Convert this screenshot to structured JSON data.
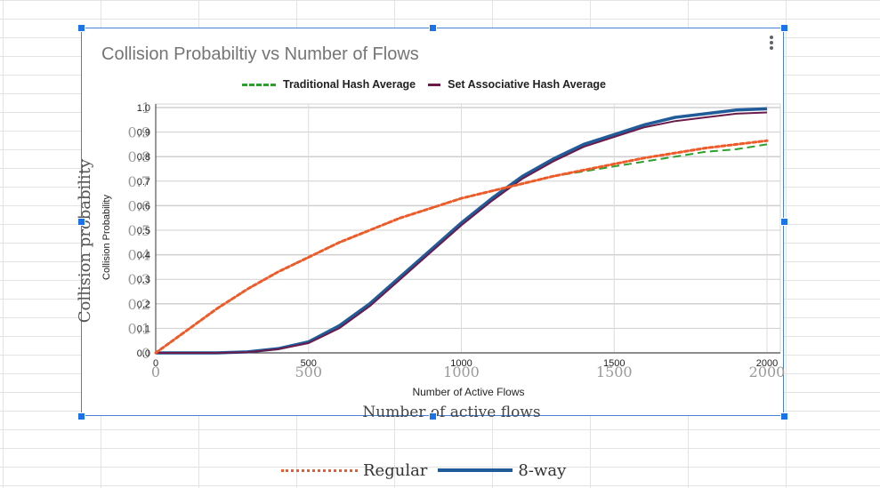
{
  "chart": {
    "title": "Collision Probabiltiy vs Number of Flows"
  },
  "chart_data": {
    "type": "line",
    "xlabel_inner": "Number of Active Flows",
    "ylabel_inner": "Collision Probability",
    "xlabel_outer": "Number of active flows",
    "ylabel_outer": "Collision probability",
    "xlim": [
      0,
      2000
    ],
    "ylim": [
      0,
      1
    ],
    "x_ticks": [
      "0",
      "500",
      "1000",
      "1500",
      "2000"
    ],
    "y_ticks": [
      "0",
      "0.1",
      "0.2",
      "0.3",
      "0.4",
      "0.5",
      "0.6",
      "0.7",
      "0.8",
      "0.9",
      "1"
    ],
    "y_ticks_inner": [
      "0.0",
      "0.1",
      "0.2",
      "0.3",
      "0.4",
      "0.5",
      "0.6",
      "0.7",
      "0.8",
      "0.9",
      "1.0"
    ],
    "grid": true,
    "legend_top": [
      "Traditional Hash Average",
      "Set Associative Hash Average"
    ],
    "legend_bottom": [
      "Regular",
      "8-way"
    ],
    "x": [
      0,
      100,
      200,
      300,
      400,
      500,
      600,
      700,
      800,
      900,
      1000,
      1100,
      1200,
      1300,
      1400,
      1500,
      1600,
      1700,
      1800,
      1900,
      2000
    ],
    "series": [
      {
        "name": "Traditional Hash Average",
        "color": "#2ca02c",
        "style": "dashed",
        "values": [
          0,
          0.09,
          0.18,
          0.26,
          0.33,
          0.39,
          0.45,
          0.5,
          0.55,
          0.59,
          0.63,
          0.66,
          0.69,
          0.72,
          0.74,
          0.76,
          0.78,
          0.8,
          0.82,
          0.83,
          0.85
        ]
      },
      {
        "name": "Regular",
        "color": "#f05a28",
        "style": "dotted",
        "values": [
          0,
          0.09,
          0.18,
          0.26,
          0.33,
          0.39,
          0.45,
          0.5,
          0.55,
          0.59,
          0.63,
          0.66,
          0.69,
          0.72,
          0.745,
          0.77,
          0.795,
          0.815,
          0.835,
          0.85,
          0.865
        ]
      },
      {
        "name": "Set Associative Hash Average",
        "color": "#6b1a4a",
        "style": "solid",
        "values": [
          0,
          0,
          0,
          0.003,
          0.015,
          0.04,
          0.1,
          0.19,
          0.3,
          0.41,
          0.52,
          0.62,
          0.71,
          0.78,
          0.84,
          0.88,
          0.92,
          0.945,
          0.96,
          0.975,
          0.98
        ]
      },
      {
        "name": "8-way",
        "color": "#1f5c99",
        "style": "solid",
        "values": [
          0,
          0,
          0,
          0.004,
          0.017,
          0.045,
          0.11,
          0.2,
          0.31,
          0.42,
          0.53,
          0.63,
          0.72,
          0.79,
          0.85,
          0.89,
          0.93,
          0.96,
          0.975,
          0.99,
          0.995
        ]
      }
    ]
  }
}
